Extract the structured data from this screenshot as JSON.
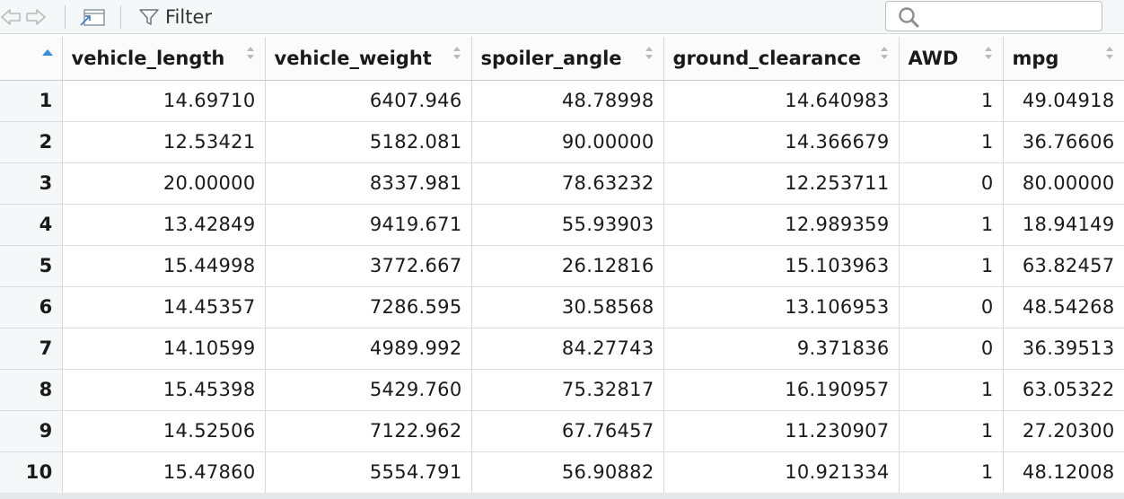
{
  "toolbar": {
    "back_icon": "arrow-left-icon",
    "forward_icon": "arrow-right-icon",
    "popout_icon": "popout-window-icon",
    "filter_label": "Filter",
    "filter_icon": "funnel-icon",
    "search_icon": "magnifier-icon",
    "search_value": "",
    "search_placeholder": ""
  },
  "table": {
    "sorted_column": "row_index",
    "sort_direction": "ascending",
    "columns": [
      "vehicle_length",
      "vehicle_weight",
      "spoiler_angle",
      "ground_clearance",
      "AWD",
      "mpg"
    ],
    "rows": [
      {
        "index": "1",
        "cells": [
          "14.69710",
          "6407.946",
          "48.78998",
          "14.640983",
          "1",
          "49.04918"
        ]
      },
      {
        "index": "2",
        "cells": [
          "12.53421",
          "5182.081",
          "90.00000",
          "14.366679",
          "1",
          "36.76606"
        ]
      },
      {
        "index": "3",
        "cells": [
          "20.00000",
          "8337.981",
          "78.63232",
          "12.253711",
          "0",
          "80.00000"
        ]
      },
      {
        "index": "4",
        "cells": [
          "13.42849",
          "9419.671",
          "55.93903",
          "12.989359",
          "1",
          "18.94149"
        ]
      },
      {
        "index": "5",
        "cells": [
          "15.44998",
          "3772.667",
          "26.12816",
          "15.103963",
          "1",
          "63.82457"
        ]
      },
      {
        "index": "6",
        "cells": [
          "14.45357",
          "7286.595",
          "30.58568",
          "13.106953",
          "0",
          "48.54268"
        ]
      },
      {
        "index": "7",
        "cells": [
          "14.10599",
          "4989.992",
          "84.27743",
          "9.371836",
          "0",
          "36.39513"
        ]
      },
      {
        "index": "8",
        "cells": [
          "15.45398",
          "5429.760",
          "75.32817",
          "16.190957",
          "1",
          "63.05322"
        ]
      },
      {
        "index": "9",
        "cells": [
          "14.52506",
          "7122.962",
          "67.76457",
          "11.230907",
          "1",
          "27.20300"
        ]
      },
      {
        "index": "10",
        "cells": [
          "15.47860",
          "5554.791",
          "56.90882",
          "10.921334",
          "1",
          "48.12008"
        ]
      }
    ]
  },
  "colors": {
    "sort_active": "#3b8fd8",
    "sort_inactive": "#b8babc",
    "toolbar_bg": "#f6f7f8"
  }
}
